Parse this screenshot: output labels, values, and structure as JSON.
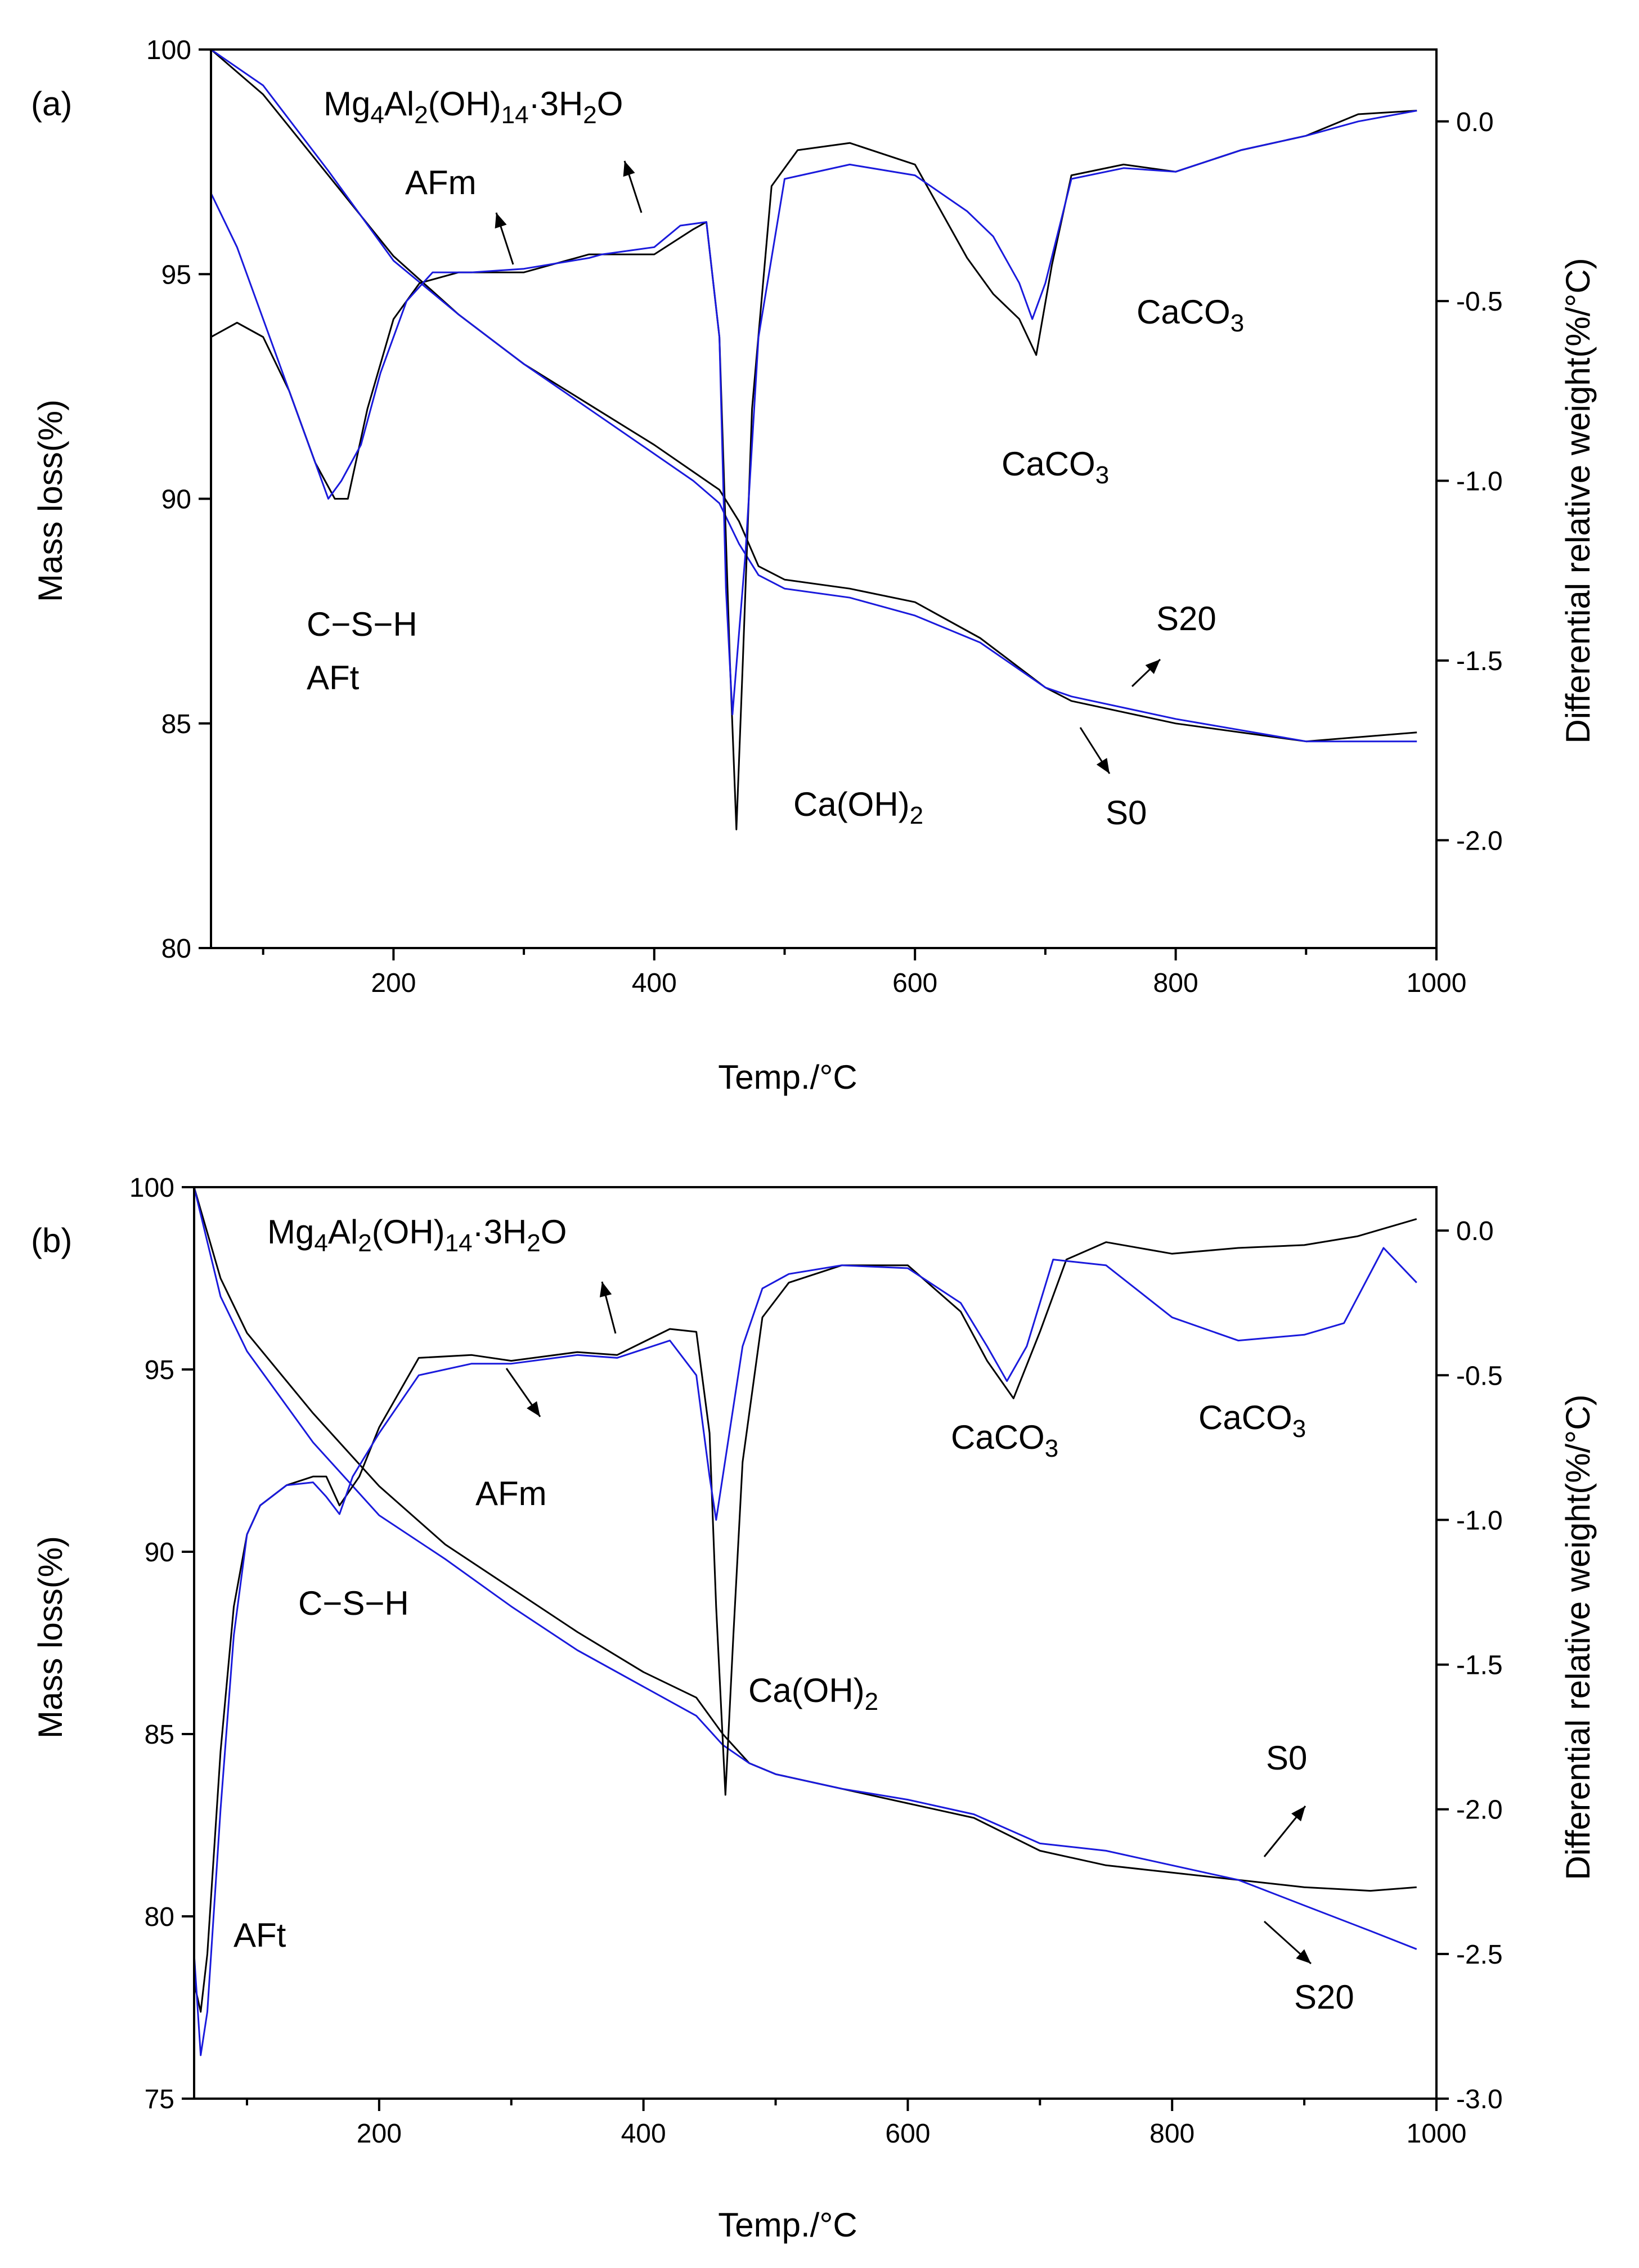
{
  "chart_data": [
    {
      "type": "line",
      "panel_label": "(a)",
      "xlabel": "Temp./°C",
      "ylabel": "Mass loss(%)",
      "y2label": "Differential relative weight(%/°C)",
      "xlim": [
        60,
        1000
      ],
      "ylim": [
        80,
        100
      ],
      "y2lim": [
        -2.3,
        0.2
      ],
      "xticks": [
        "200",
        "400",
        "600",
        "800",
        "1000"
      ],
      "yticks": [
        "80",
        "85",
        "90",
        "95",
        "100"
      ],
      "y2ticks": [
        "-2.0",
        "-1.5",
        "-1.0",
        "-0.5",
        "0.0"
      ],
      "colors": {
        "S0": "#000000",
        "S20": "#1a1adc"
      },
      "annotations": {
        "mg": {
          "base": "Mg",
          "sub1": "4",
          "mid1": "Al",
          "sub2": "2",
          "mid2": "(OH)",
          "sub3": "14",
          "mid3": "·3H",
          "sub4": "2",
          "tail": "O"
        },
        "afm": "AFm",
        "caco3_right": {
          "base": "CaCO",
          "sub": "3"
        },
        "caco3_mid": {
          "base": "CaCO",
          "sub": "3"
        },
        "csh": "C−S−H",
        "aft": "AFt",
        "caoh2": {
          "base": "Ca(OH)",
          "sub": "2"
        },
        "s20": "S20",
        "s0": "S0"
      },
      "series": [
        {
          "name": "S0 mass loss",
          "axis": "left",
          "color": "#000000",
          "x": [
            60,
            100,
            150,
            200,
            250,
            300,
            350,
            400,
            430,
            450,
            465,
            480,
            500,
            550,
            600,
            650,
            700,
            720,
            800,
            900,
            985
          ],
          "y": [
            100,
            99.0,
            97.2,
            95.4,
            94.1,
            93.0,
            92.1,
            91.2,
            90.6,
            90.2,
            89.5,
            88.5,
            88.2,
            88.0,
            87.7,
            86.9,
            85.8,
            85.5,
            85.0,
            84.6,
            84.8
          ]
        },
        {
          "name": "S20 mass loss",
          "axis": "left",
          "color": "#1a1adc",
          "x": [
            60,
            100,
            150,
            200,
            250,
            300,
            350,
            400,
            430,
            450,
            465,
            480,
            500,
            550,
            600,
            650,
            700,
            720,
            800,
            900,
            985
          ],
          "y": [
            100,
            99.2,
            97.3,
            95.3,
            94.1,
            93.0,
            92.0,
            91.0,
            90.4,
            89.9,
            89.0,
            88.3,
            88.0,
            87.8,
            87.4,
            86.8,
            85.8,
            85.6,
            85.1,
            84.6,
            84.6
          ]
        },
        {
          "name": "S0 DTG",
          "axis": "right",
          "color": "#000000",
          "x": [
            60,
            80,
            100,
            120,
            140,
            155,
            165,
            180,
            200,
            220,
            250,
            300,
            350,
            400,
            430,
            440,
            450,
            458,
            463,
            468,
            475,
            490,
            510,
            550,
            600,
            640,
            660,
            680,
            693,
            705,
            720,
            760,
            800,
            850,
            900,
            940,
            985
          ],
          "y": [
            -0.6,
            -0.56,
            -0.6,
            -0.75,
            -0.95,
            -1.05,
            -1.05,
            -0.8,
            -0.55,
            -0.45,
            -0.42,
            -0.42,
            -0.37,
            -0.37,
            -0.3,
            -0.28,
            -0.6,
            -1.5,
            -1.97,
            -1.5,
            -0.8,
            -0.18,
            -0.08,
            -0.06,
            -0.12,
            -0.38,
            -0.48,
            -0.55,
            -0.65,
            -0.4,
            -0.15,
            -0.12,
            -0.14,
            -0.08,
            -0.04,
            0.02,
            0.03
          ]
        },
        {
          "name": "S20 DTG",
          "axis": "right",
          "color": "#1a1adc",
          "x": [
            60,
            80,
            100,
            120,
            140,
            150,
            160,
            175,
            190,
            210,
            230,
            260,
            300,
            350,
            360,
            400,
            420,
            440,
            450,
            455,
            460,
            470,
            480,
            500,
            550,
            600,
            640,
            660,
            680,
            690,
            700,
            720,
            760,
            800,
            850,
            900,
            940,
            985
          ],
          "y": [
            -0.2,
            -0.35,
            -0.55,
            -0.75,
            -0.95,
            -1.05,
            -1.0,
            -0.9,
            -0.7,
            -0.5,
            -0.42,
            -0.42,
            -0.41,
            -0.38,
            -0.37,
            -0.35,
            -0.29,
            -0.28,
            -0.6,
            -1.3,
            -1.65,
            -1.2,
            -0.6,
            -0.16,
            -0.12,
            -0.15,
            -0.25,
            -0.32,
            -0.45,
            -0.55,
            -0.45,
            -0.16,
            -0.13,
            -0.14,
            -0.08,
            -0.04,
            0.0,
            0.03
          ]
        }
      ]
    },
    {
      "type": "line",
      "panel_label": "(b)",
      "xlabel": "Temp./°C",
      "ylabel": "Mass loss(%)",
      "y2label": "Differential relative weight(%/°C)",
      "xlim": [
        60,
        1000
      ],
      "ylim": [
        75,
        100
      ],
      "y2lim": [
        -3.0,
        0.15
      ],
      "xticks": [
        "200",
        "400",
        "600",
        "800",
        "1000"
      ],
      "yticks": [
        "75",
        "80",
        "85",
        "90",
        "95",
        "100"
      ],
      "y2ticks": [
        "-3.0",
        "-2.5",
        "-2.0",
        "-1.5",
        "-1.0",
        "-0.5",
        "0.0"
      ],
      "colors": {
        "S0": "#000000",
        "S20": "#1a1adc"
      },
      "annotations": {
        "mg": {
          "base": "Mg",
          "sub1": "4",
          "mid1": "Al",
          "sub2": "2",
          "mid2": "(OH)",
          "sub3": "14",
          "mid3": "·3H",
          "sub4": "2",
          "tail": "O"
        },
        "afm": "AFm",
        "caco3_mid": {
          "base": "CaCO",
          "sub": "3"
        },
        "caco3_right": {
          "base": "CaCO",
          "sub": "3"
        },
        "csh": "C−S−H",
        "aft": "AFt",
        "caoh2": {
          "base": "Ca(OH)",
          "sub": "2"
        },
        "s0": "S0",
        "s20": "S20"
      },
      "series": [
        {
          "name": "S0 mass loss",
          "axis": "left",
          "color": "#000000",
          "x": [
            60,
            80,
            100,
            150,
            200,
            250,
            300,
            350,
            400,
            440,
            460,
            480,
            500,
            550,
            600,
            650,
            700,
            750,
            800,
            850,
            900,
            950,
            985
          ],
          "y": [
            100,
            97.5,
            96.0,
            93.8,
            91.8,
            90.2,
            89.0,
            87.8,
            86.7,
            86.0,
            85.0,
            84.2,
            83.9,
            83.5,
            83.1,
            82.7,
            81.8,
            81.4,
            81.2,
            81.0,
            80.8,
            80.7,
            80.8
          ]
        },
        {
          "name": "S20 mass loss",
          "axis": "left",
          "color": "#1a1adc",
          "x": [
            60,
            80,
            100,
            150,
            200,
            250,
            300,
            350,
            400,
            440,
            460,
            480,
            500,
            550,
            600,
            650,
            700,
            750,
            800,
            850,
            900,
            950,
            985
          ],
          "y": [
            100,
            97.0,
            95.5,
            93.0,
            91.0,
            89.8,
            88.5,
            87.3,
            86.3,
            85.5,
            84.7,
            84.2,
            83.9,
            83.5,
            83.2,
            82.8,
            82.0,
            81.8,
            81.4,
            81.0,
            80.3,
            79.6,
            79.1
          ]
        },
        {
          "name": "S0 DTG",
          "axis": "right",
          "color": "#000000",
          "x": [
            60,
            65,
            70,
            80,
            90,
            100,
            110,
            130,
            150,
            160,
            170,
            185,
            200,
            230,
            270,
            300,
            350,
            380,
            420,
            440,
            450,
            455,
            462,
            468,
            475,
            490,
            510,
            550,
            600,
            640,
            660,
            680,
            700,
            720,
            750,
            800,
            850,
            900,
            940,
            985
          ],
          "y": [
            -2.6,
            -2.7,
            -2.5,
            -1.8,
            -1.3,
            -1.05,
            -0.95,
            -0.88,
            -0.85,
            -0.85,
            -0.95,
            -0.85,
            -0.68,
            -0.44,
            -0.43,
            -0.45,
            -0.42,
            -0.43,
            -0.34,
            -0.35,
            -0.7,
            -1.3,
            -1.95,
            -1.4,
            -0.8,
            -0.3,
            -0.18,
            -0.12,
            -0.12,
            -0.28,
            -0.45,
            -0.58,
            -0.35,
            -0.1,
            -0.04,
            -0.08,
            -0.06,
            -0.05,
            -0.02,
            0.04
          ]
        },
        {
          "name": "S20 DTG",
          "axis": "right",
          "color": "#1a1adc",
          "x": [
            60,
            65,
            70,
            80,
            90,
            100,
            110,
            130,
            150,
            160,
            170,
            180,
            200,
            230,
            270,
            300,
            350,
            380,
            420,
            440,
            450,
            455,
            465,
            475,
            490,
            510,
            550,
            600,
            640,
            660,
            675,
            690,
            710,
            750,
            800,
            850,
            900,
            930,
            960,
            985
          ],
          "y": [
            -2.5,
            -2.85,
            -2.7,
            -2.0,
            -1.4,
            -1.05,
            -0.95,
            -0.88,
            -0.87,
            -0.92,
            -0.98,
            -0.85,
            -0.7,
            -0.5,
            -0.46,
            -0.46,
            -0.43,
            -0.44,
            -0.38,
            -0.5,
            -0.85,
            -1.0,
            -0.7,
            -0.4,
            -0.2,
            -0.15,
            -0.12,
            -0.13,
            -0.25,
            -0.4,
            -0.52,
            -0.4,
            -0.1,
            -0.12,
            -0.3,
            -0.38,
            -0.36,
            -0.32,
            -0.06,
            -0.18
          ]
        }
      ]
    }
  ]
}
